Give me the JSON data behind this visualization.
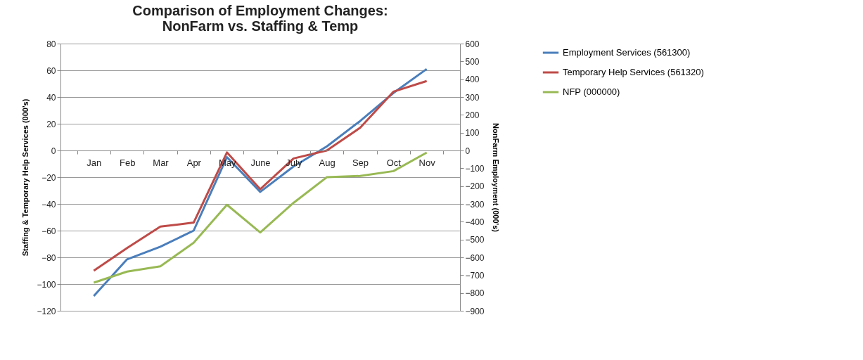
{
  "chart_data": {
    "type": "line",
    "title": "Comparison of Employment Changes:\nNonFarm vs. Staffing & Temp",
    "ylabel": "Staffing & Temporary Help Services (000's)",
    "y2label": "NonFarm Employment  (000's)",
    "categories": [
      "Jan",
      "Feb",
      "Mar",
      "Apr",
      "May",
      "June",
      "July",
      "Aug",
      "Sep",
      "Oct",
      "Nov"
    ],
    "series": [
      {
        "name": "Employment Services (561300)",
        "color": "#4a7ebb",
        "values": [
          -109,
          -81.5,
          -72,
          -60,
          -5,
          -31,
          -12,
          3,
          22,
          43,
          61
        ]
      },
      {
        "name": "Temporary Help Services (561320)",
        "color": "#be4b48",
        "values": [
          -90,
          -73,
          -57,
          -54,
          -1.5,
          -29,
          -6,
          0,
          17,
          44,
          52
        ]
      },
      {
        "name": "NFP (000000)",
        "color": "#98b954",
        "axis": "y2",
        "values": [
          -742,
          -680,
          -650,
          -518,
          -305,
          -460,
          -294,
          -150,
          -143,
          -116,
          -12
        ]
      }
    ],
    "ylim": [
      -120,
      80
    ],
    "yticks": [
      -120,
      -100,
      -80,
      -60,
      -40,
      -20,
      0,
      20,
      40,
      60,
      80
    ],
    "y2lim": [
      -900,
      600
    ],
    "y2ticks": [
      -900,
      -800,
      -700,
      -600,
      -500,
      -400,
      -300,
      -200,
      -100,
      0,
      100,
      200,
      300,
      400,
      500,
      600
    ],
    "grid": "y",
    "legend": "right",
    "marker": "none",
    "line_style": "solid"
  }
}
